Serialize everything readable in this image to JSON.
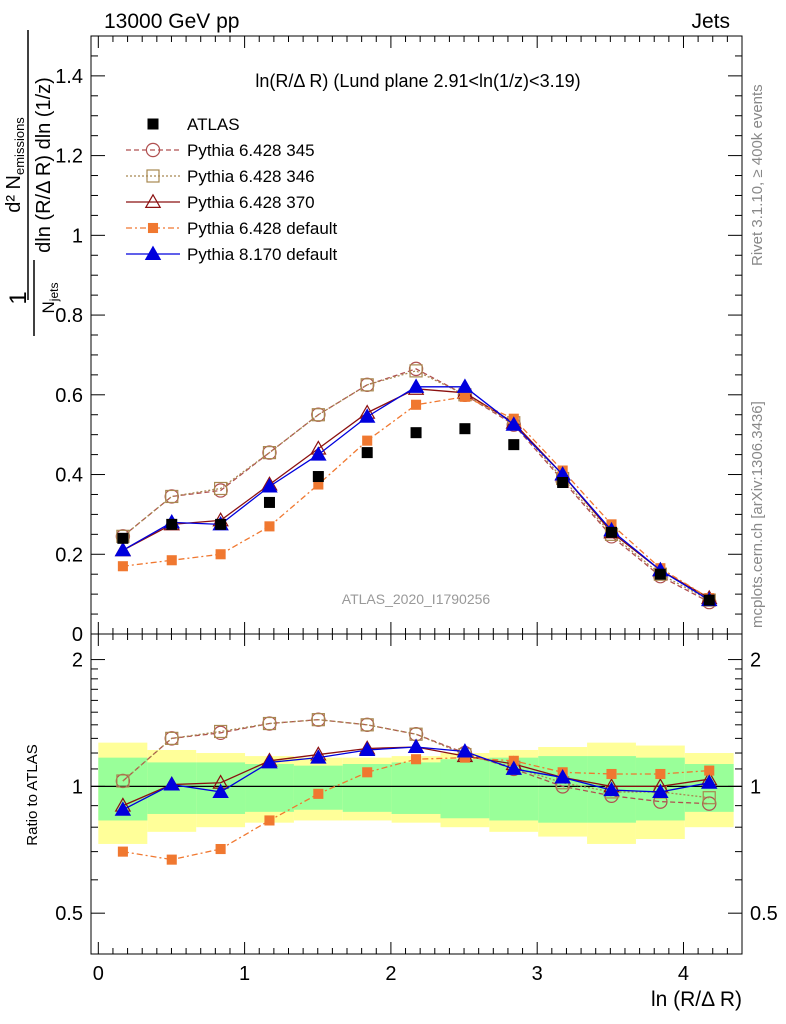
{
  "header": {
    "energy_label": "13000 GeV pp",
    "category_label": "Jets"
  },
  "side_notes": {
    "rivet": "Rivet 3.1.10, ≥ 400k events",
    "mcplots": "mcplots.cern.ch [arXiv:1306.3436]"
  },
  "chart_data": {
    "type": "line",
    "title": "ln(R/Δ R) (Lund plane 2.91<ln(1/z)<3.19)",
    "watermark": "ATLAS_2020_I1790256",
    "xlabel": "ln (R/Δ R)",
    "ylabel": "1 / N_jets dln(R/Δ R) dln(1/z) d² N_emissions",
    "ratio_ylabel": "Ratio to ATLAS",
    "xlim": [
      -0.05,
      4.4
    ],
    "ylim": [
      0,
      1.5
    ],
    "ratio_ylim": [
      0.4,
      2.3
    ],
    "x_ticks": [
      0,
      1,
      2,
      3,
      4
    ],
    "y_ticks": [
      0,
      0.2,
      0.4,
      0.6,
      0.8,
      1,
      1.2,
      1.4
    ],
    "y_tick_labels": [
      "0",
      "0.2",
      "0.4",
      "0.6",
      "0.8",
      "1",
      "1.2",
      "1.4"
    ],
    "ratio_ticks": [
      0.5,
      1,
      2
    ],
    "ratio_tick_labels": [
      "0.5",
      "1",
      "2"
    ],
    "legend_position": "top-left",
    "x": [
      0.168,
      0.502,
      0.836,
      1.17,
      1.504,
      1.838,
      2.172,
      2.506,
      2.84,
      3.174,
      3.508,
      3.842,
      4.176
    ],
    "bin_edges": [
      0.0,
      0.335,
      0.669,
      1.003,
      1.337,
      1.671,
      2.005,
      2.339,
      2.673,
      3.007,
      3.341,
      3.675,
      4.009,
      4.343
    ],
    "data": {
      "name": "ATLAS",
      "values": [
        0.24,
        0.275,
        0.275,
        0.33,
        0.395,
        0.455,
        0.505,
        0.515,
        0.475,
        0.38,
        0.255,
        0.15,
        0.085
      ],
      "ratio_band_inner": [
        0.17,
        0.14,
        0.14,
        0.13,
        0.12,
        0.13,
        0.14,
        0.16,
        0.17,
        0.18,
        0.18,
        0.17,
        0.13
      ],
      "ratio_band_outer": [
        0.27,
        0.22,
        0.2,
        0.18,
        0.17,
        0.17,
        0.18,
        0.2,
        0.22,
        0.24,
        0.27,
        0.25,
        0.2
      ]
    },
    "series": [
      {
        "name": "Pythia 6.428 345",
        "color": "#b05050",
        "dash": "5,3",
        "marker": "circle-open",
        "values": [
          0.245,
          0.345,
          0.36,
          0.455,
          0.55,
          0.625,
          0.665,
          0.6,
          0.525,
          0.385,
          0.245,
          0.145,
          0.08
        ],
        "ratio": [
          1.03,
          1.3,
          1.34,
          1.41,
          1.44,
          1.4,
          1.33,
          1.2,
          1.1,
          1.0,
          0.95,
          0.92,
          0.91
        ]
      },
      {
        "name": "Pythia 6.428 346",
        "color": "#a88850",
        "dash": "2,2",
        "marker": "square-open",
        "values": [
          0.245,
          0.345,
          0.365,
          0.455,
          0.55,
          0.625,
          0.66,
          0.6,
          0.53,
          0.39,
          0.25,
          0.15,
          0.085
        ],
        "ratio": [
          1.03,
          1.3,
          1.35,
          1.41,
          1.44,
          1.4,
          1.33,
          1.19,
          1.11,
          1.02,
          0.97,
          0.97,
          0.94
        ]
      },
      {
        "name": "Pythia 6.428 370",
        "color": "#8b1010",
        "dash": "",
        "marker": "triangle-open",
        "values": [
          0.21,
          0.275,
          0.285,
          0.375,
          0.465,
          0.555,
          0.615,
          0.605,
          0.53,
          0.4,
          0.255,
          0.16,
          0.09
        ],
        "ratio": [
          0.9,
          1.01,
          1.02,
          1.15,
          1.19,
          1.23,
          1.24,
          1.18,
          1.13,
          1.05,
          1.0,
          1.0,
          1.04
        ]
      },
      {
        "name": "Pythia 6.428 default",
        "color": "#f07830",
        "dash": "6,3,2,3",
        "marker": "square-filled",
        "values": [
          0.17,
          0.185,
          0.2,
          0.27,
          0.375,
          0.485,
          0.575,
          0.595,
          0.54,
          0.41,
          0.275,
          0.165,
          0.09
        ],
        "ratio": [
          0.7,
          0.67,
          0.71,
          0.83,
          0.96,
          1.08,
          1.16,
          1.17,
          1.15,
          1.08,
          1.07,
          1.07,
          1.09
        ]
      },
      {
        "name": "Pythia 8.170 default",
        "color": "#0000dd",
        "dash": "",
        "marker": "triangle-filled",
        "values": [
          0.21,
          0.28,
          0.275,
          0.37,
          0.45,
          0.545,
          0.62,
          0.62,
          0.525,
          0.4,
          0.26,
          0.16,
          0.085
        ],
        "ratio": [
          0.88,
          1.01,
          0.97,
          1.14,
          1.17,
          1.22,
          1.24,
          1.21,
          1.1,
          1.05,
          0.98,
          0.97,
          1.02
        ]
      }
    ]
  }
}
